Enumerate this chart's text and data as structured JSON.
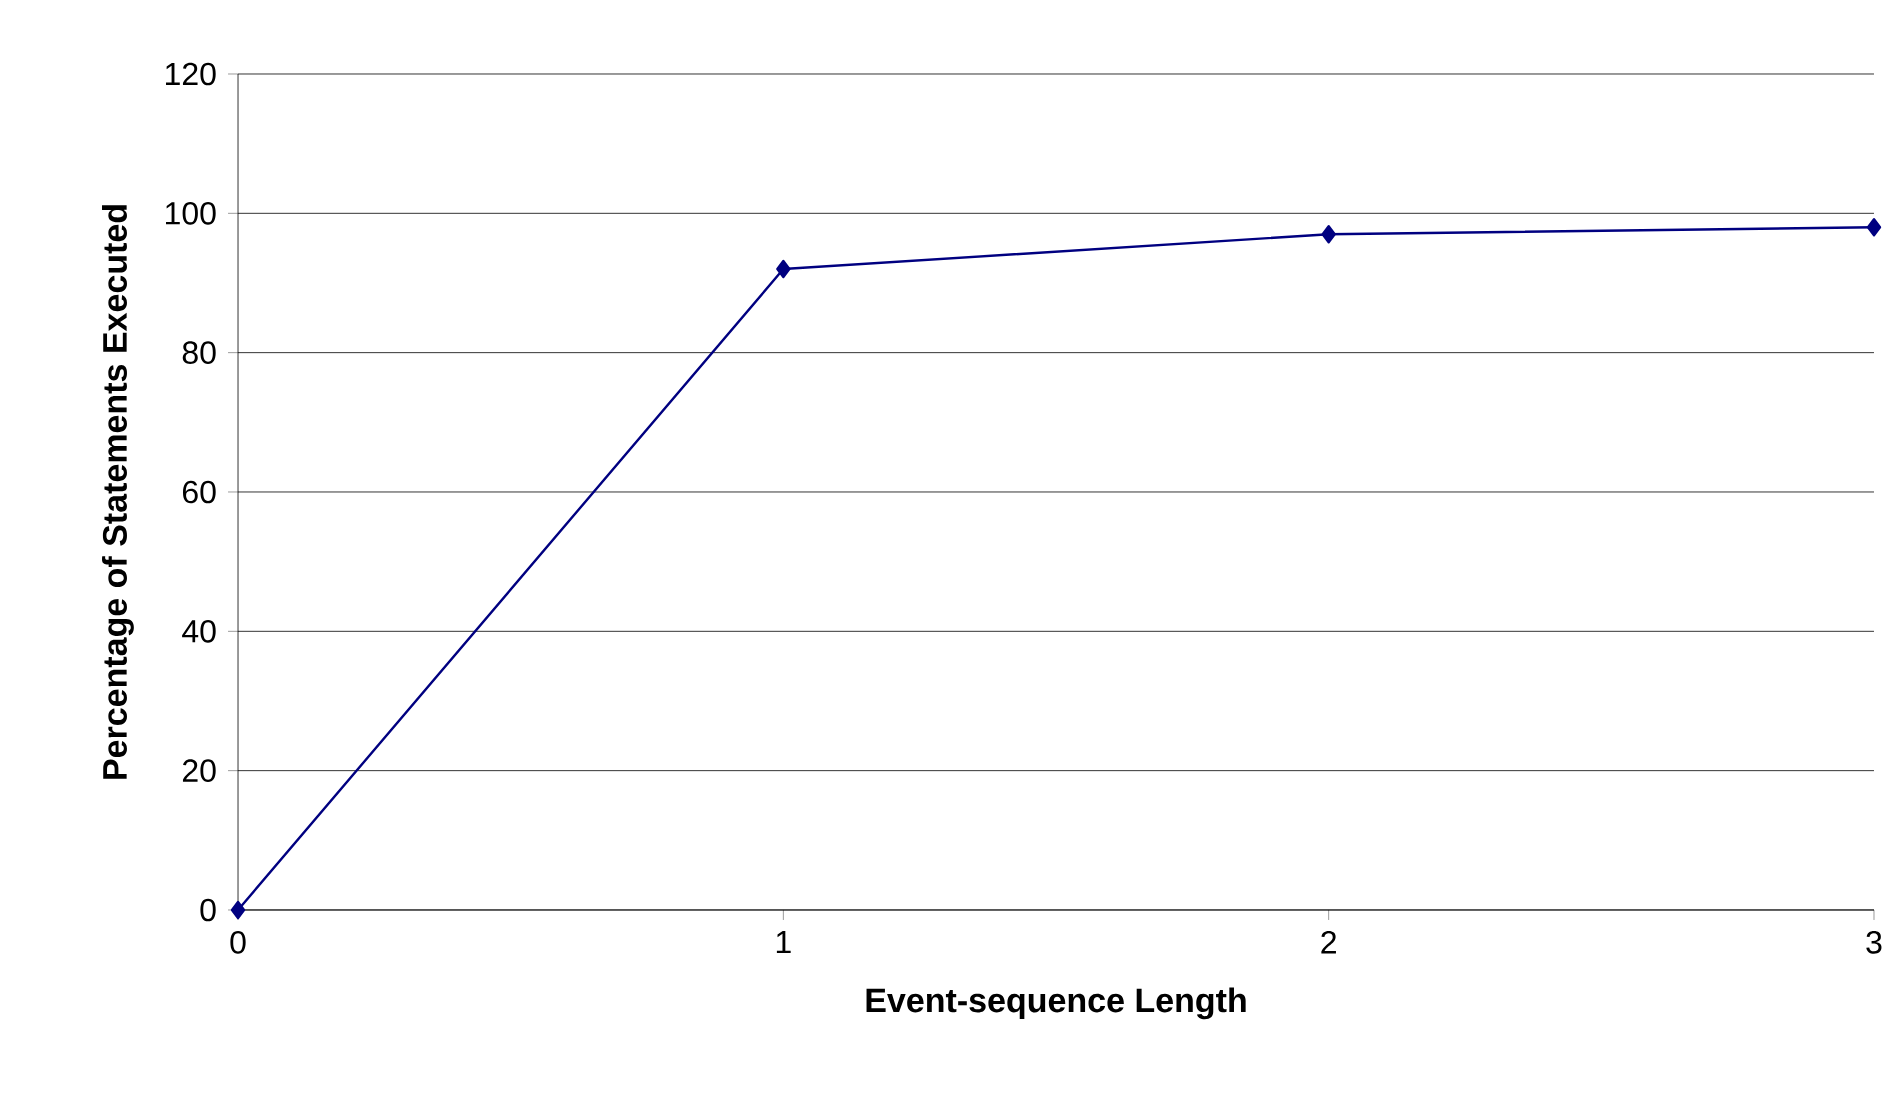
{
  "chart_data": {
    "type": "line",
    "xlabel": "Event-sequence Length",
    "ylabel": "Percentage of Statements Executed",
    "x": [
      0,
      1,
      2,
      3
    ],
    "values": [
      0,
      92,
      97,
      98
    ],
    "color": "#000080",
    "xlim": [
      0,
      3
    ],
    "ylim": [
      0,
      120
    ],
    "xticks": [
      0,
      1,
      2,
      3
    ],
    "yticks": [
      0,
      20,
      40,
      60,
      80,
      100,
      120
    ],
    "grid": "y",
    "marker": "diamond",
    "line_style": "solid"
  }
}
